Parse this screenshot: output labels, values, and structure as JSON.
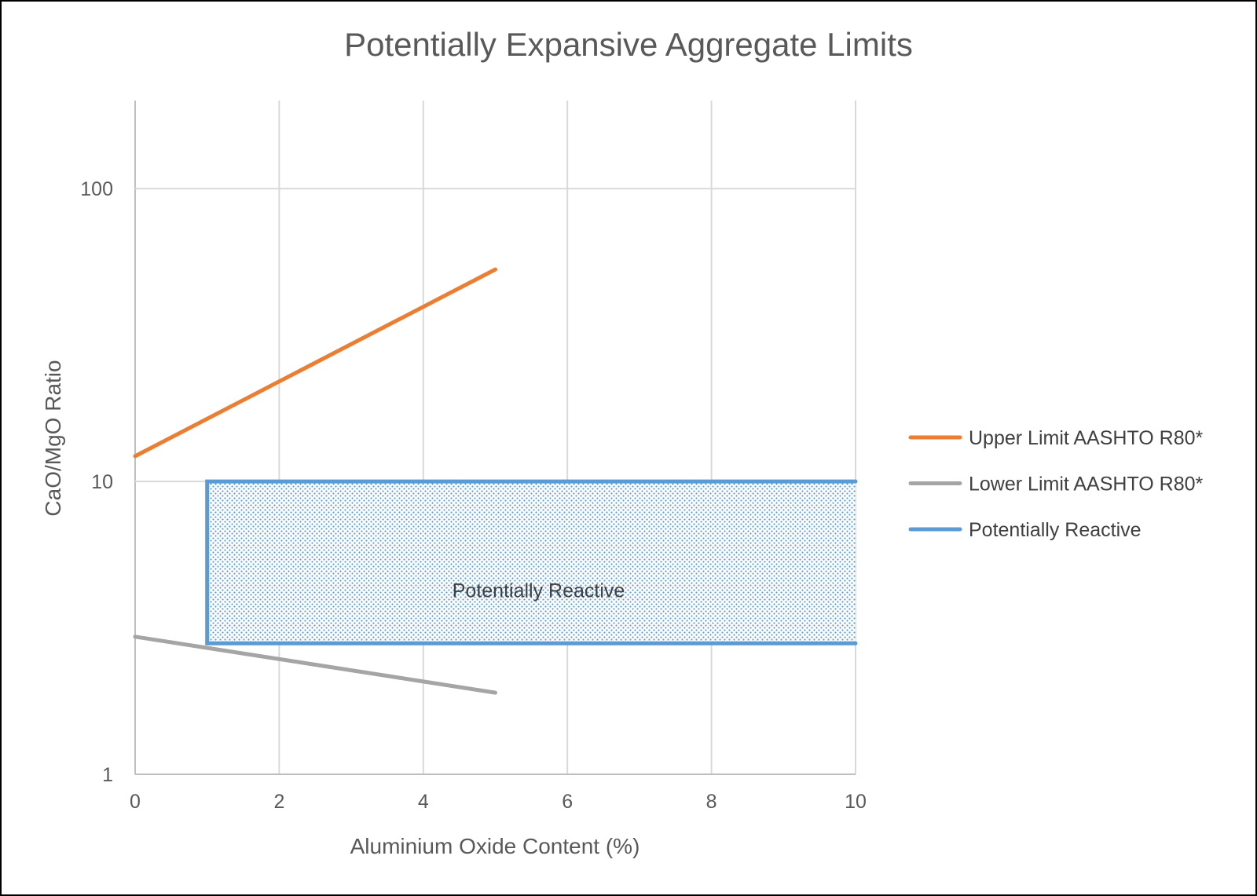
{
  "chart_data": {
    "type": "line",
    "title": "Potentially Expansive Aggregate Limits",
    "xlabel": "Aluminium Oxide Content (%)",
    "ylabel": "CaO/MgO Ratio",
    "xlim": [
      0,
      10
    ],
    "ylim": [
      1,
      200
    ],
    "yscale": "log",
    "x_ticks": [
      0,
      2,
      4,
      6,
      8,
      10
    ],
    "y_ticks": [
      1,
      10,
      100
    ],
    "grid": true,
    "legend_position": "right",
    "series": [
      {
        "name": "Upper Limit AASHTO R80*",
        "color": "#ED7D31",
        "x": [
          0,
          5
        ],
        "y": [
          12.2,
          53
        ]
      },
      {
        "name": "Lower Limit AASHTO R80*",
        "color": "#A5A5A5",
        "x": [
          0,
          5
        ],
        "y": [
          2.95,
          1.9
        ]
      },
      {
        "name": "Potentially Reactive",
        "color": "#5B9BD5",
        "x": [
          10,
          1,
          1,
          10
        ],
        "y": [
          10,
          10,
          2.8,
          2.8
        ]
      }
    ],
    "annotations": [
      {
        "text": "Potentially Reactive",
        "x": 5.6,
        "y": 4.25
      }
    ]
  }
}
